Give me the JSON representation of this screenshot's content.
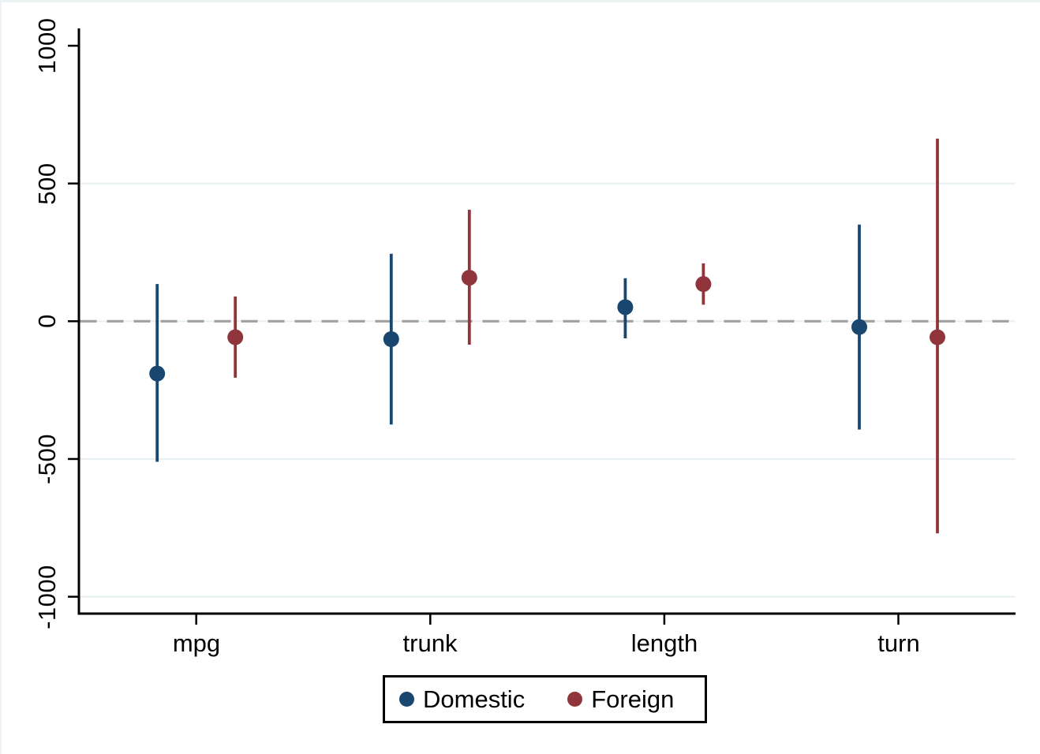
{
  "window": {
    "background": "#ffffff",
    "edge_color": "#edf2f5"
  },
  "chart_data": {
    "type": "scatter",
    "subtype": "coefplot-vertical-confidence-intervals",
    "title": "",
    "xlabel": "",
    "ylabel": "",
    "categories": [
      "mpg",
      "trunk",
      "length",
      "turn"
    ],
    "series": [
      {
        "name": "Domestic",
        "color": "#1a476f",
        "estimates": [
          -190,
          -65,
          51,
          -21
        ],
        "ci_low": [
          -510,
          -375,
          -62,
          -393
        ],
        "ci_high": [
          135,
          245,
          156,
          351
        ]
      },
      {
        "name": "Foreign",
        "color": "#90353b",
        "estimates": [
          -58,
          158,
          135,
          -58
        ],
        "ci_low": [
          -205,
          -85,
          60,
          -770
        ],
        "ci_high": [
          90,
          405,
          210,
          663
        ]
      }
    ],
    "yticks": [
      1000,
      500,
      0,
      -500,
      -1000
    ],
    "ytick_labels": [
      "1000",
      "500",
      "0",
      "-500",
      "-1000"
    ],
    "ylim": [
      -1060,
      1062
    ],
    "grid_values": [
      500,
      0,
      -500,
      -1000
    ],
    "grid_color": "#e9f0f3",
    "grid_on": true,
    "zero_line": {
      "value": 0,
      "style": "dashed",
      "color": "#a0a0a0"
    },
    "axis_color": "#000000",
    "legend_position": "bottom-center"
  }
}
